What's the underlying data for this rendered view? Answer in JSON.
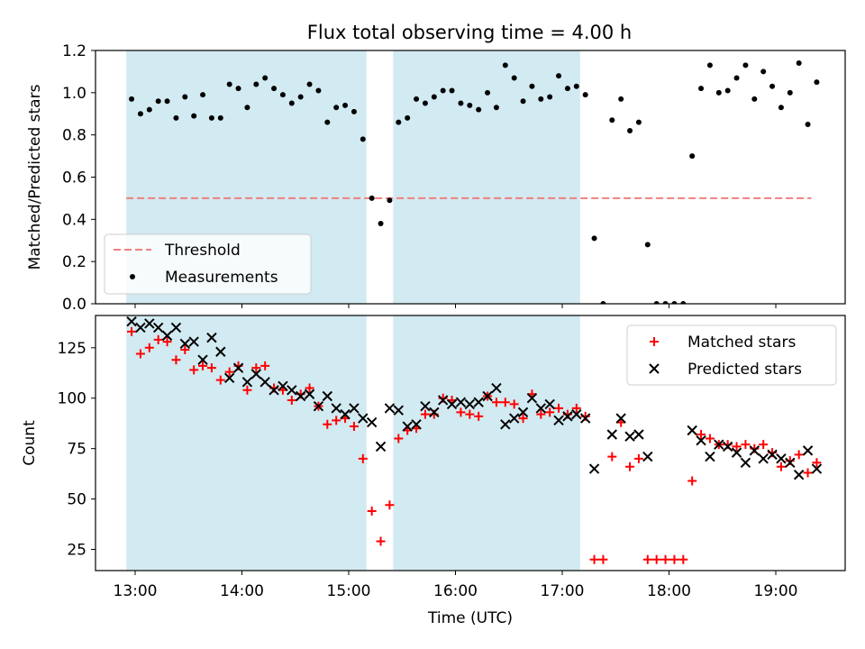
{
  "title": "Flux total observing time = 4.00 h",
  "chart_data": [
    {
      "type": "scatter",
      "panel": "top",
      "title": "Flux total observing time = 4.00 h",
      "xlabel": "",
      "ylabel": "Matched/Predicted stars",
      "x_ticks": [
        "13:00",
        "14:00",
        "15:00",
        "16:00",
        "17:00",
        "18:00",
        "19:00"
      ],
      "y_ticks": [
        "0.0",
        "0.2",
        "0.4",
        "0.6",
        "0.8",
        "1.0",
        "1.2"
      ],
      "ylim": [
        0,
        1.2
      ],
      "grid": false,
      "legend_position": "lower-left",
      "shaded_intervals": [
        [
          "12:55",
          "15:10"
        ],
        [
          "15:25",
          "17:10"
        ]
      ],
      "shade_color": "#add8e6",
      "threshold": {
        "name": "Threshold",
        "value": 0.5,
        "x_range": [
          "12:55",
          "19:20"
        ],
        "color": "#f08080",
        "style": "dashed"
      },
      "series": [
        {
          "name": "Measurements",
          "color": "#000000",
          "marker": "dot",
          "points": [
            [
              "12:58",
              0.97
            ],
            [
              "13:03",
              0.9
            ],
            [
              "13:08",
              0.92
            ],
            [
              "13:13",
              0.96
            ],
            [
              "13:18",
              0.96
            ],
            [
              "13:23",
              0.88
            ],
            [
              "13:28",
              0.98
            ],
            [
              "13:33",
              0.89
            ],
            [
              "13:38",
              0.99
            ],
            [
              "13:43",
              0.88
            ],
            [
              "13:48",
              0.88
            ],
            [
              "13:53",
              1.04
            ],
            [
              "13:58",
              1.02
            ],
            [
              "14:03",
              0.93
            ],
            [
              "14:08",
              1.04
            ],
            [
              "14:13",
              1.07
            ],
            [
              "14:18",
              1.02
            ],
            [
              "14:23",
              0.99
            ],
            [
              "14:28",
              0.95
            ],
            [
              "14:33",
              0.98
            ],
            [
              "14:38",
              1.04
            ],
            [
              "14:43",
              1.01
            ],
            [
              "14:48",
              0.86
            ],
            [
              "14:53",
              0.93
            ],
            [
              "14:58",
              0.94
            ],
            [
              "15:03",
              0.91
            ],
            [
              "15:08",
              0.78
            ],
            [
              "15:13",
              0.5
            ],
            [
              "15:18",
              0.38
            ],
            [
              "15:23",
              0.49
            ],
            [
              "15:28",
              0.86
            ],
            [
              "15:33",
              0.88
            ],
            [
              "15:38",
              0.97
            ],
            [
              "15:43",
              0.95
            ],
            [
              "15:48",
              0.98
            ],
            [
              "15:53",
              1.01
            ],
            [
              "15:58",
              1.01
            ],
            [
              "16:03",
              0.95
            ],
            [
              "16:08",
              0.94
            ],
            [
              "16:13",
              0.92
            ],
            [
              "16:18",
              1.0
            ],
            [
              "16:23",
              0.93
            ],
            [
              "16:28",
              1.13
            ],
            [
              "16:33",
              1.07
            ],
            [
              "16:38",
              0.96
            ],
            [
              "16:43",
              1.03
            ],
            [
              "16:48",
              0.97
            ],
            [
              "16:53",
              0.98
            ],
            [
              "16:58",
              1.08
            ],
            [
              "17:03",
              1.02
            ],
            [
              "17:08",
              1.03
            ],
            [
              "17:13",
              0.99
            ],
            [
              "17:18",
              0.31
            ],
            [
              "17:23",
              0.0
            ],
            [
              "17:28",
              0.87
            ],
            [
              "17:33",
              0.97
            ],
            [
              "17:38",
              0.82
            ],
            [
              "17:43",
              0.86
            ],
            [
              "17:48",
              0.28
            ],
            [
              "17:53",
              0.0
            ],
            [
              "17:58",
              0.0
            ],
            [
              "18:03",
              0.0
            ],
            [
              "18:08",
              0.0
            ],
            [
              "18:13",
              0.7
            ],
            [
              "18:18",
              1.02
            ],
            [
              "18:23",
              1.13
            ],
            [
              "18:28",
              1.0
            ],
            [
              "18:33",
              1.01
            ],
            [
              "18:38",
              1.07
            ],
            [
              "18:43",
              1.13
            ],
            [
              "18:48",
              0.97
            ],
            [
              "18:53",
              1.1
            ],
            [
              "18:58",
              1.03
            ],
            [
              "19:03",
              0.93
            ],
            [
              "19:08",
              1.0
            ],
            [
              "19:13",
              1.14
            ],
            [
              "19:18",
              0.85
            ],
            [
              "19:23",
              1.05
            ]
          ]
        }
      ]
    },
    {
      "type": "scatter",
      "panel": "bottom",
      "title": "",
      "xlabel": "Time (UTC)",
      "ylabel": "Count",
      "x_ticks": [
        "13:00",
        "14:00",
        "15:00",
        "16:00",
        "17:00",
        "18:00",
        "19:00"
      ],
      "y_ticks": [
        "25",
        "50",
        "75",
        "100",
        "125"
      ],
      "ylim": [
        14.5,
        141
      ],
      "grid": false,
      "legend_position": "top-right",
      "shaded_intervals": [
        [
          "12:55",
          "15:10"
        ],
        [
          "15:25",
          "17:10"
        ]
      ],
      "shade_color": "#add8e6",
      "series": [
        {
          "name": "Matched stars",
          "color": "#ff0000",
          "marker": "plus",
          "points": [
            [
              "12:58",
              133
            ],
            [
              "13:03",
              122
            ],
            [
              "13:08",
              125
            ],
            [
              "13:13",
              129
            ],
            [
              "13:18",
              128
            ],
            [
              "13:23",
              119
            ],
            [
              "13:28",
              124
            ],
            [
              "13:33",
              114
            ],
            [
              "13:38",
              116
            ],
            [
              "13:43",
              115
            ],
            [
              "13:48",
              109
            ],
            [
              "13:53",
              113
            ],
            [
              "13:58",
              116
            ],
            [
              "14:03",
              104
            ],
            [
              "14:08",
              115
            ],
            [
              "14:13",
              116
            ],
            [
              "14:18",
              105
            ],
            [
              "14:23",
              104
            ],
            [
              "14:28",
              99
            ],
            [
              "14:33",
              102
            ],
            [
              "14:38",
              105
            ],
            [
              "14:43",
              96
            ],
            [
              "14:48",
              87
            ],
            [
              "14:53",
              89
            ],
            [
              "14:58",
              90
            ],
            [
              "15:03",
              86
            ],
            [
              "15:08",
              70
            ],
            [
              "15:13",
              44
            ],
            [
              "15:18",
              29
            ],
            [
              "15:23",
              47
            ],
            [
              "15:28",
              80
            ],
            [
              "15:33",
              84
            ],
            [
              "15:38",
              85
            ],
            [
              "15:43",
              92
            ],
            [
              "15:48",
              92
            ],
            [
              "15:53",
              100
            ],
            [
              "15:58",
              99
            ],
            [
              "16:03",
              93
            ],
            [
              "16:08",
              92
            ],
            [
              "16:13",
              91
            ],
            [
              "16:18",
              101
            ],
            [
              "16:23",
              98
            ],
            [
              "16:28",
              98
            ],
            [
              "16:33",
              97
            ],
            [
              "16:38",
              90
            ],
            [
              "16:43",
              102
            ],
            [
              "16:48",
              92
            ],
            [
              "16:53",
              93
            ],
            [
              "16:58",
              95
            ],
            [
              "17:03",
              92
            ],
            [
              "17:08",
              95
            ],
            [
              "17:13",
              91
            ],
            [
              "17:18",
              20
            ],
            [
              "17:23",
              20
            ],
            [
              "17:28",
              71
            ],
            [
              "17:33",
              88
            ],
            [
              "17:38",
              66
            ],
            [
              "17:43",
              70
            ],
            [
              "17:48",
              20
            ],
            [
              "17:53",
              20
            ],
            [
              "17:58",
              20
            ],
            [
              "18:03",
              20
            ],
            [
              "18:08",
              20
            ],
            [
              "18:13",
              59
            ],
            [
              "18:18",
              82
            ],
            [
              "18:23",
              80
            ],
            [
              "18:28",
              77
            ],
            [
              "18:33",
              77
            ],
            [
              "18:38",
              76
            ],
            [
              "18:43",
              77
            ],
            [
              "18:48",
              75
            ],
            [
              "18:53",
              77
            ],
            [
              "18:58",
              73
            ],
            [
              "19:03",
              66
            ],
            [
              "19:08",
              69
            ],
            [
              "19:13",
              72
            ],
            [
              "19:18",
              63
            ],
            [
              "19:23",
              68
            ]
          ]
        },
        {
          "name": "Predicted stars",
          "color": "#000000",
          "marker": "x",
          "points": [
            [
              "12:58",
              138
            ],
            [
              "13:03",
              135
            ],
            [
              "13:08",
              137
            ],
            [
              "13:13",
              135
            ],
            [
              "13:18",
              131
            ],
            [
              "13:23",
              135
            ],
            [
              "13:28",
              127
            ],
            [
              "13:33",
              128
            ],
            [
              "13:38",
              119
            ],
            [
              "13:43",
              130
            ],
            [
              "13:48",
              123
            ],
            [
              "13:53",
              110
            ],
            [
              "13:58",
              115
            ],
            [
              "14:03",
              108
            ],
            [
              "14:08",
              112
            ],
            [
              "14:13",
              108
            ],
            [
              "14:18",
              104
            ],
            [
              "14:23",
              106
            ],
            [
              "14:28",
              104
            ],
            [
              "14:33",
              101
            ],
            [
              "14:38",
              102
            ],
            [
              "14:43",
              96
            ],
            [
              "14:48",
              101
            ],
            [
              "14:53",
              95
            ],
            [
              "14:58",
              92
            ],
            [
              "15:03",
              95
            ],
            [
              "15:08",
              90
            ],
            [
              "15:13",
              88
            ],
            [
              "15:18",
              76
            ],
            [
              "15:23",
              95
            ],
            [
              "15:28",
              94
            ],
            [
              "15:33",
              86
            ],
            [
              "15:38",
              87
            ],
            [
              "15:43",
              96
            ],
            [
              "15:48",
              93
            ],
            [
              "15:53",
              99
            ],
            [
              "15:58",
              97
            ],
            [
              "16:03",
              98
            ],
            [
              "16:08",
              97
            ],
            [
              "16:13",
              98
            ],
            [
              "16:18",
              101
            ],
            [
              "16:23",
              105
            ],
            [
              "16:28",
              87
            ],
            [
              "16:33",
              90
            ],
            [
              "16:38",
              93
            ],
            [
              "16:43",
              100
            ],
            [
              "16:48",
              95
            ],
            [
              "16:53",
              97
            ],
            [
              "16:58",
              89
            ],
            [
              "17:03",
              91
            ],
            [
              "17:08",
              92
            ],
            [
              "17:13",
              90
            ],
            [
              "17:18",
              65
            ],
            [
              "17:28",
              82
            ],
            [
              "17:33",
              90
            ],
            [
              "17:38",
              81
            ],
            [
              "17:43",
              82
            ],
            [
              "17:48",
              71
            ],
            [
              "18:13",
              84
            ],
            [
              "18:18",
              79
            ],
            [
              "18:23",
              71
            ],
            [
              "18:28",
              77
            ],
            [
              "18:33",
              76
            ],
            [
              "18:38",
              73
            ],
            [
              "18:43",
              68
            ],
            [
              "18:48",
              74
            ],
            [
              "18:53",
              70
            ],
            [
              "18:58",
              72
            ],
            [
              "19:03",
              70
            ],
            [
              "19:08",
              68
            ],
            [
              "19:13",
              62
            ],
            [
              "19:18",
              74
            ],
            [
              "19:23",
              65
            ]
          ]
        }
      ]
    }
  ]
}
